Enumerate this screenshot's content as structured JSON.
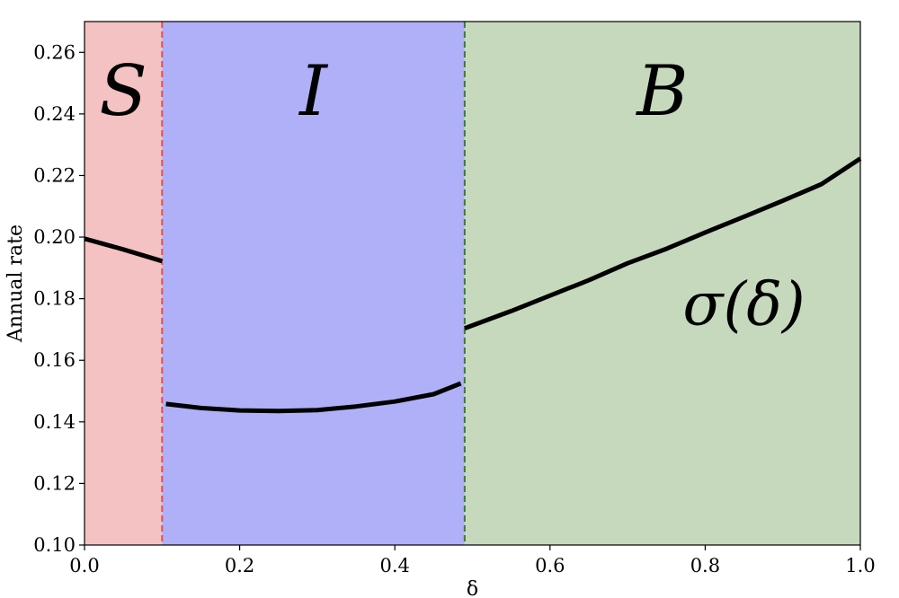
{
  "chart_data": {
    "type": "line",
    "xlabel": "δ",
    "ylabel": "Annual rate",
    "xlim": [
      0.0,
      1.0
    ],
    "ylim": [
      0.1,
      0.27
    ],
    "x_ticks": [
      0.0,
      0.2,
      0.4,
      0.6,
      0.8,
      1.0
    ],
    "x_tick_labels": [
      "0.0",
      "0.2",
      "0.4",
      "0.6",
      "0.8",
      "1.0"
    ],
    "y_ticks": [
      0.1,
      0.12,
      0.14,
      0.16,
      0.18,
      0.2,
      0.22,
      0.24,
      0.26
    ],
    "y_tick_labels": [
      "0.10",
      "0.12",
      "0.14",
      "0.16",
      "0.18",
      "0.20",
      "0.22",
      "0.24",
      "0.26"
    ],
    "grid": false,
    "regions": [
      {
        "label": "S",
        "x_start": 0.0,
        "x_end": 0.1,
        "color": "#f4c2c2",
        "boundary_color": "#e05050"
      },
      {
        "label": "I",
        "x_start": 0.1,
        "x_end": 0.49,
        "color": "#b0b0f8",
        "boundary_color": "#3a7a3a"
      },
      {
        "label": "B",
        "x_start": 0.49,
        "x_end": 1.0,
        "color": "#c6d9bd",
        "boundary_color": null
      }
    ],
    "series": [
      {
        "name": "σ(δ)",
        "color": "#000000",
        "segments": [
          {
            "x": [
              0.0,
              0.05,
              0.1
            ],
            "y": [
              0.1995,
              0.196,
              0.1922
            ]
          },
          {
            "x": [
              0.105,
              0.15,
              0.2,
              0.25,
              0.3,
              0.35,
              0.4,
              0.45,
              0.485
            ],
            "y": [
              0.1458,
              0.1445,
              0.1437,
              0.1435,
              0.1438,
              0.145,
              0.1466,
              0.149,
              0.1525
            ]
          },
          {
            "x": [
              0.49,
              0.55,
              0.6,
              0.65,
              0.7,
              0.75,
              0.8,
              0.85,
              0.9,
              0.95,
              1.0
            ],
            "y": [
              0.1704,
              0.176,
              0.181,
              0.186,
              0.1915,
              0.1962,
              0.2015,
              0.2066,
              0.2118,
              0.2172,
              0.2255
            ]
          }
        ]
      }
    ],
    "annotations": [
      {
        "text": "σ(δ)",
        "x": 0.85,
        "y": 0.178
      }
    ]
  }
}
